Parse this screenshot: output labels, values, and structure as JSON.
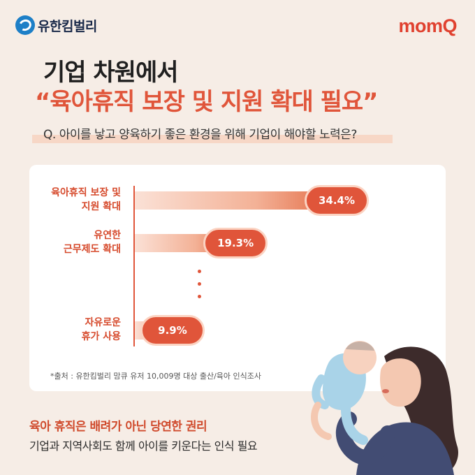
{
  "brand": {
    "left_logo": "유한킴벌리",
    "right_logo": "momQ"
  },
  "title": {
    "line1": "기업 차원에서",
    "line2": "“육아휴직 보장 및 지원 확대 필요”"
  },
  "question": "Q. 아이를 낳고 양육하기 좋은 환경을 위해 기업이 해야할 노력은?",
  "chart_data": {
    "type": "bar",
    "orientation": "horizontal",
    "categories": [
      "육아휴직 보장 및 지원 확대",
      "유연한 근무제도 확대",
      "자유로운 휴가 사용"
    ],
    "category_lines": [
      [
        "육아휴직 보장 및",
        "지원 확대"
      ],
      [
        "유연한",
        "근무제도 확대"
      ],
      [
        "자유로운",
        "휴가 사용"
      ]
    ],
    "values": [
      34.4,
      19.3,
      9.9
    ],
    "value_labels": [
      "34.4%",
      "19.3%",
      "9.9%"
    ],
    "unit": "%",
    "colors": {
      "accent": "#e0553a",
      "bar_start": "#fbe1d6",
      "bar_end": "#e36a44"
    }
  },
  "source": "*출처 : 유한킴벌리 맘큐 유저 10,009명 대상 출산/육아 인식조사",
  "footer": {
    "headline": "육아 휴직은 배려가 아닌 당연한 권리",
    "subline": "기업과 지역사회도 함께 아이를 키운다는 인식 필요"
  },
  "colors": {
    "background": "#f6ede6",
    "accent": "#e0553a",
    "brand_blue": "#1d7fc7",
    "momq_red": "#e0412f"
  }
}
